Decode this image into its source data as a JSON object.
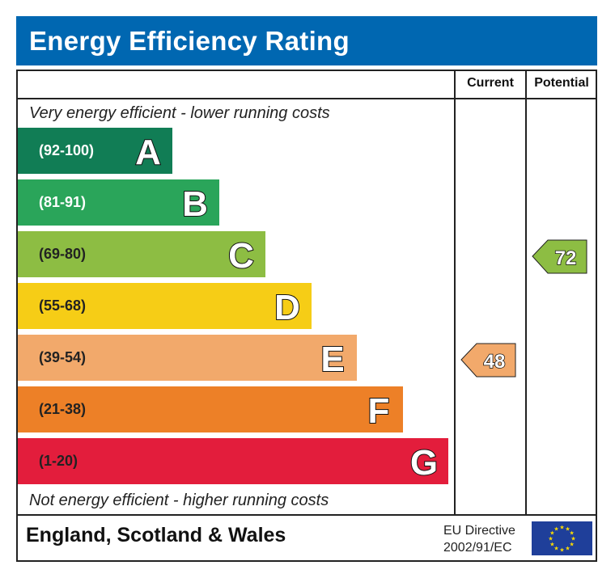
{
  "title": "Energy Efficiency Rating",
  "columns": {
    "current": "Current",
    "potential": "Potential"
  },
  "top_note": "Very energy efficient - lower running costs",
  "bottom_note": "Not energy efficient - higher running costs",
  "footer": {
    "region": "England, Scotland & Wales",
    "directive_line1": "EU Directive",
    "directive_line2": "2002/91/EC",
    "flag_icon": "eu-flag-icon"
  },
  "chart_data": {
    "type": "bar",
    "title": "Energy Efficiency Rating",
    "bands": [
      {
        "letter": "A",
        "range": "(92-100)",
        "color": "#117d55",
        "text_color": "#ffffff"
      },
      {
        "letter": "B",
        "range": "(81-91)",
        "color": "#2aa55a",
        "text_color": "#ffffff"
      },
      {
        "letter": "C",
        "range": "(69-80)",
        "color": "#8dbd43",
        "text_color": "#222222"
      },
      {
        "letter": "D",
        "range": "(55-68)",
        "color": "#f6cd16",
        "text_color": "#222222"
      },
      {
        "letter": "E",
        "range": "(39-54)",
        "color": "#f2a96b",
        "text_color": "#222222"
      },
      {
        "letter": "F",
        "range": "(21-38)",
        "color": "#ed8027",
        "text_color": "#222222"
      },
      {
        "letter": "G",
        "range": "(1-20)",
        "color": "#e31d3c",
        "text_color": "#222222"
      }
    ],
    "current": {
      "value": "48",
      "band": "E",
      "color": "#f2a96b"
    },
    "potential": {
      "value": "72",
      "band": "C",
      "color": "#8dbd43"
    }
  }
}
